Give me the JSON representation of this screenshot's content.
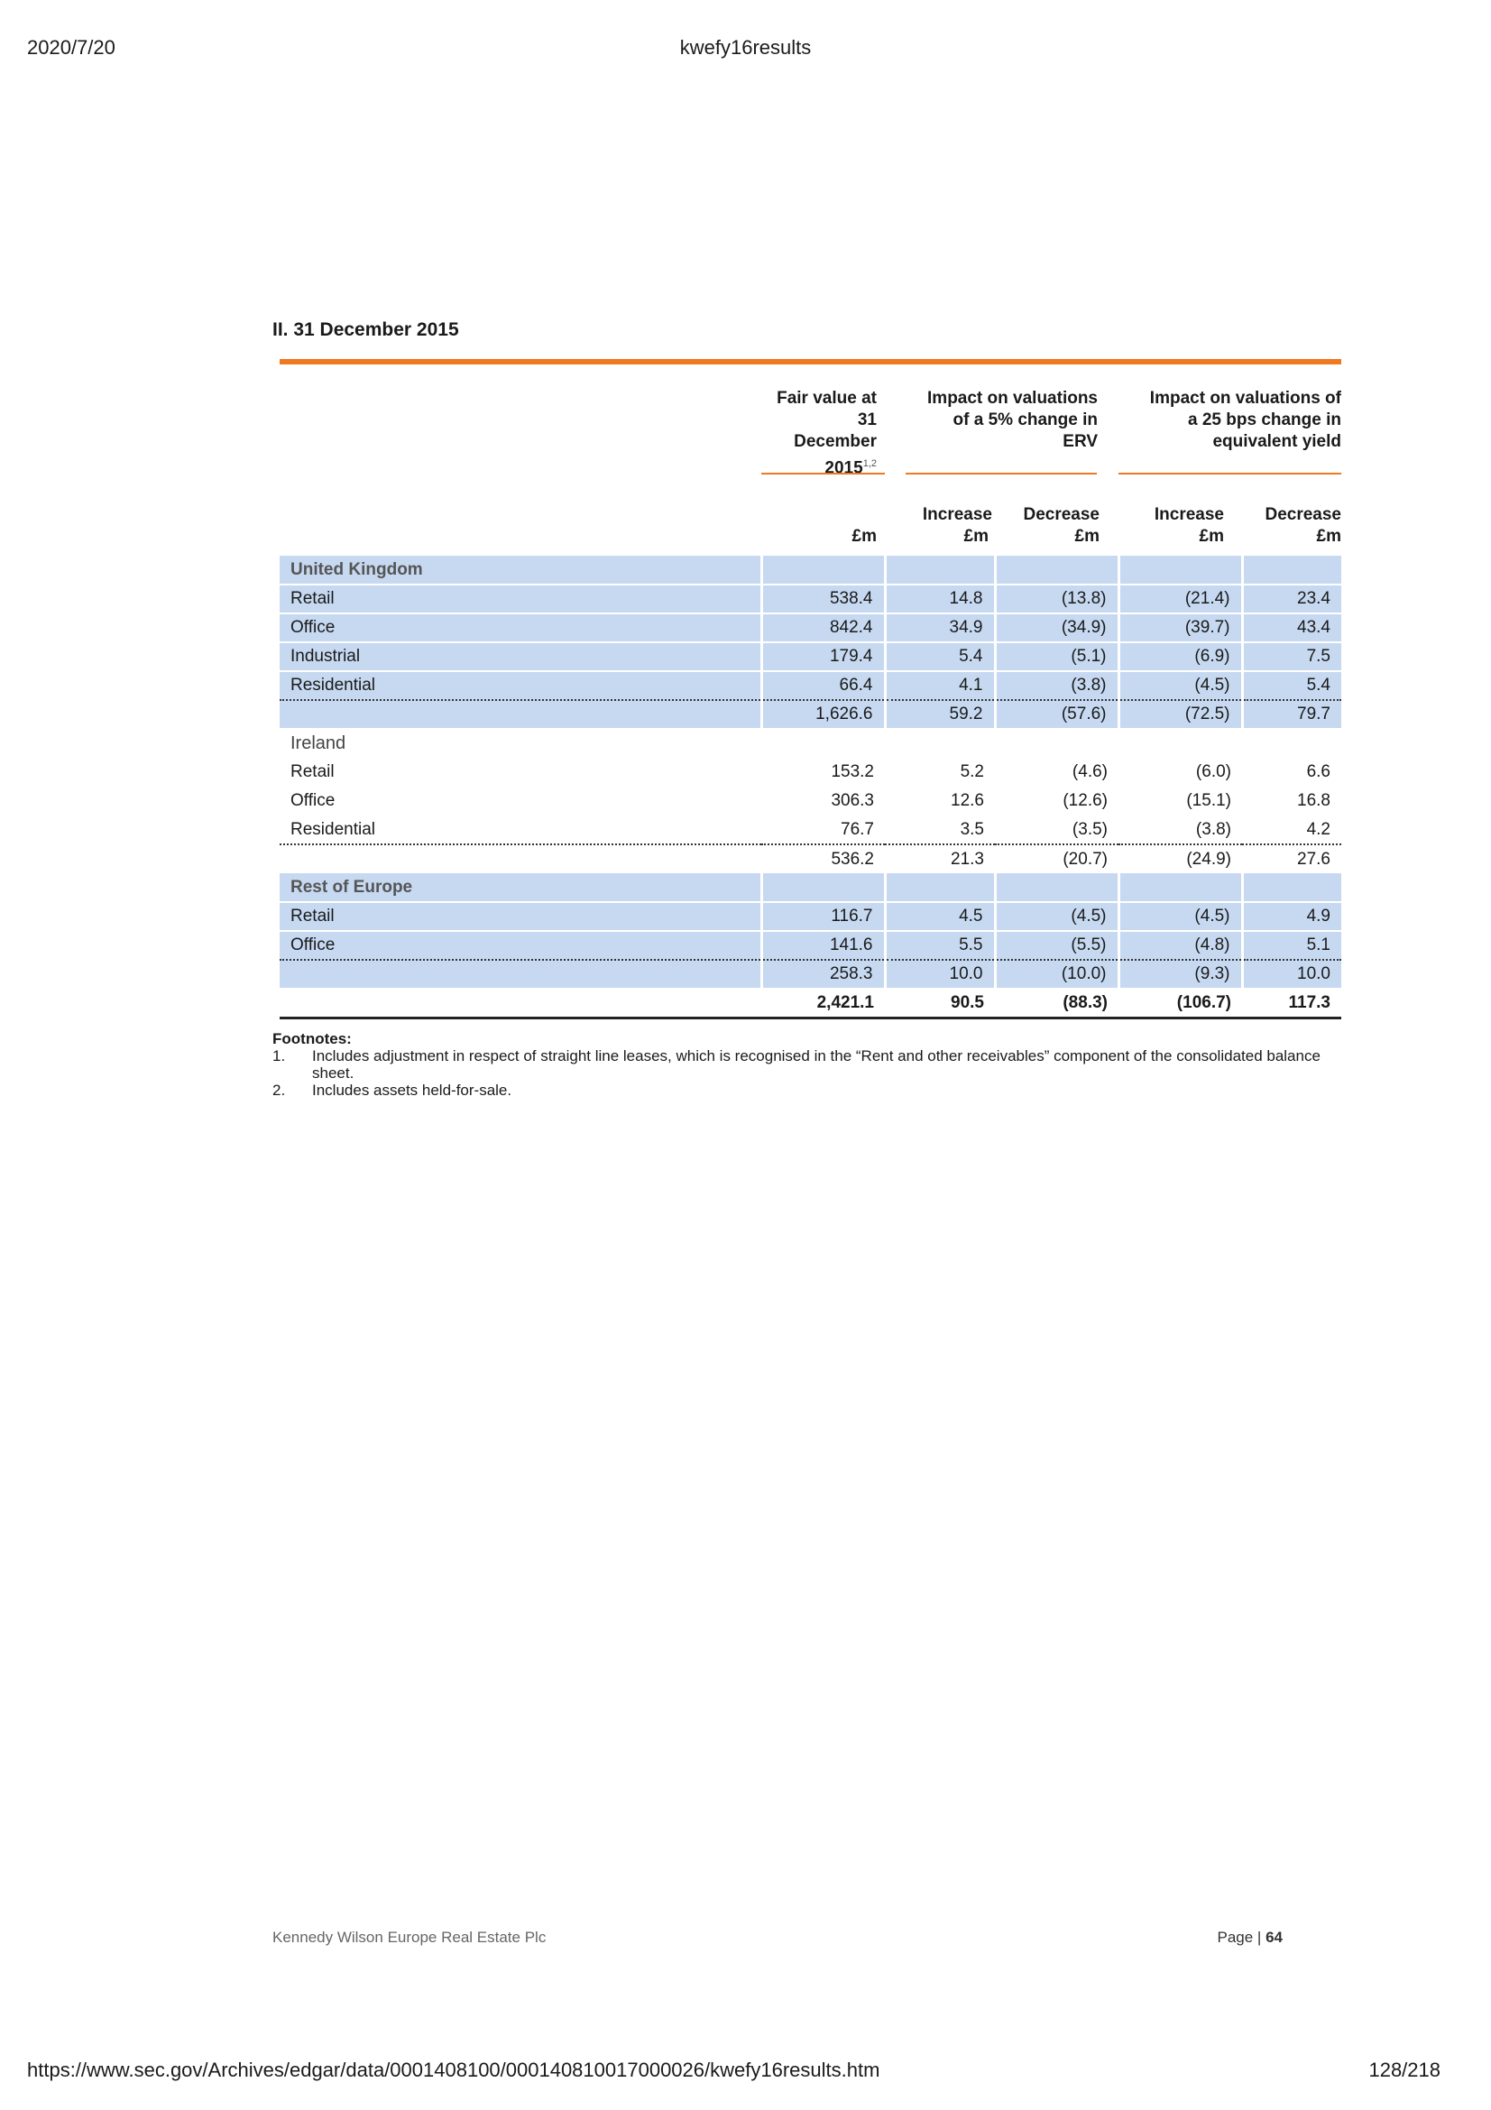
{
  "print_header": {
    "date": "2020/7/20",
    "title": "kwefy16results"
  },
  "print_footer": {
    "url": "https://www.sec.gov/Archives/edgar/data/0001408100/000140810017000026/kwefy16results.htm",
    "page": "128/218"
  },
  "section_title": "II. 31 December 2015",
  "table": {
    "header": {
      "fair_value_lines": [
        "Fair value at",
        "31",
        "December"
      ],
      "fair_value_year": "2015",
      "fair_value_sup": "1,2",
      "erv_lines": [
        "Impact on valuations",
        "of a 5% change in",
        "ERV"
      ],
      "yield_lines": [
        "Impact on valuations of",
        "a 25 bps change in",
        "equivalent yield"
      ],
      "increase": "Increase",
      "decrease": "Decrease",
      "unit": "£m"
    },
    "groups": [
      {
        "name": "United Kingdom",
        "rows": [
          {
            "label": "Retail",
            "values": [
              "538.4",
              "14.8",
              "(13.8)",
              "(21.4)",
              "23.4"
            ]
          },
          {
            "label": "Office",
            "values": [
              "842.4",
              "34.9",
              "(34.9)",
              "(39.7)",
              "43.4"
            ]
          },
          {
            "label": "Industrial",
            "values": [
              "179.4",
              "5.4",
              "(5.1)",
              "(6.9)",
              "7.5"
            ]
          },
          {
            "label": "Residential",
            "values": [
              "66.4",
              "4.1",
              "(3.8)",
              "(4.5)",
              "5.4"
            ]
          }
        ],
        "subtotal": [
          "1,626.6",
          "59.2",
          "(57.6)",
          "(72.5)",
          "79.7"
        ]
      },
      {
        "name": "Ireland",
        "rows": [
          {
            "label": "Retail",
            "values": [
              "153.2",
              "5.2",
              "(4.6)",
              "(6.0)",
              "6.6"
            ]
          },
          {
            "label": "Office",
            "values": [
              "306.3",
              "12.6",
              "(12.6)",
              "(15.1)",
              "16.8"
            ]
          },
          {
            "label": "Residential",
            "values": [
              "76.7",
              "3.5",
              "(3.5)",
              "(3.8)",
              "4.2"
            ]
          }
        ],
        "subtotal": [
          "536.2",
          "21.3",
          "(20.7)",
          "(24.9)",
          "27.6"
        ]
      },
      {
        "name": "Rest of Europe",
        "rows": [
          {
            "label": "Retail",
            "values": [
              "116.7",
              "4.5",
              "(4.5)",
              "(4.5)",
              "4.9"
            ]
          },
          {
            "label": "Office",
            "values": [
              "141.6",
              "5.5",
              "(5.5)",
              "(4.8)",
              "5.1"
            ]
          }
        ],
        "subtotal": [
          "258.3",
          "10.0",
          "(10.0)",
          "(9.3)",
          "10.0"
        ]
      }
    ],
    "total": [
      "2,421.1",
      "90.5",
      "(88.3)",
      "(106.7)",
      "117.3"
    ]
  },
  "footnotes": {
    "title": "Footnotes:",
    "items": [
      {
        "n": "1.",
        "text": "Includes adjustment in respect of straight line leases, which is recognised in the “Rent and other receivables” component of the consolidated balance sheet."
      },
      {
        "n": "2.",
        "text": "Includes assets held-for-sale."
      }
    ]
  },
  "page_footer": {
    "company": "Kennedy Wilson Europe Real Estate Plc",
    "page_label": "Page |",
    "page_number": "64"
  }
}
